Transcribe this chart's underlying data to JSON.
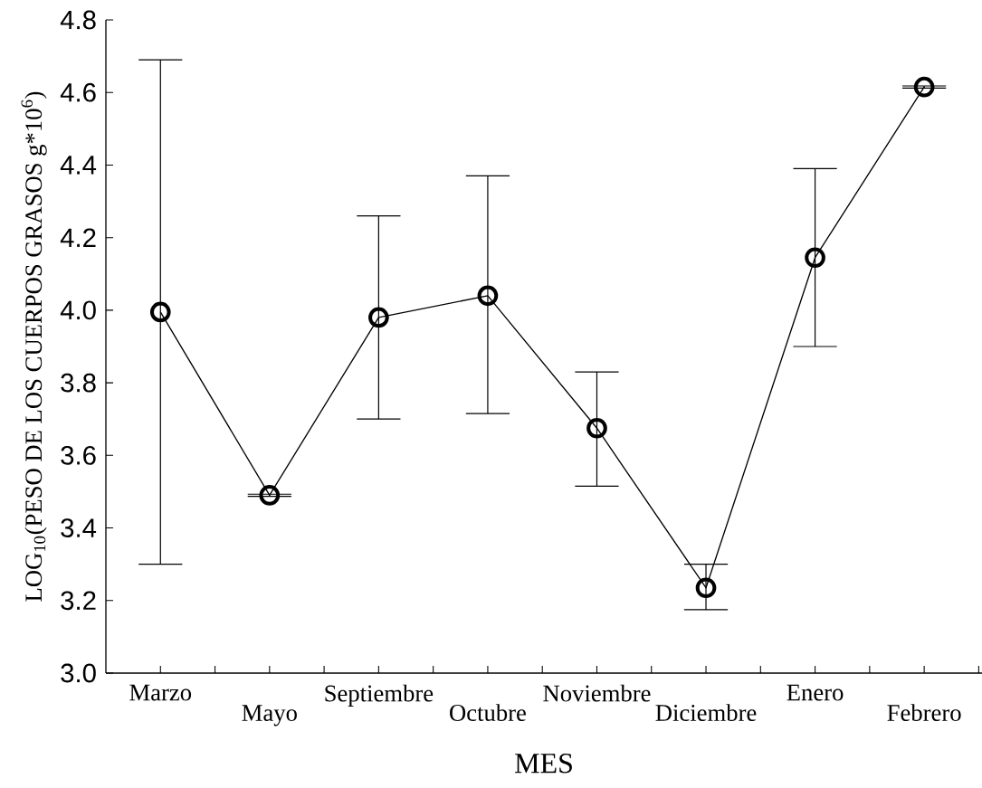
{
  "chart_data": {
    "type": "line",
    "xlabel": "MES",
    "ylabel": "LOG$_{10}$(PESO DE LOS CUERPOS GRASOS g*10$^{6}$)",
    "categories": [
      "Marzo",
      "Mayo",
      "Septiembre",
      "Octubre",
      "Noviembre",
      "Diciembre",
      "Enero",
      "Febrero"
    ],
    "values": [
      3.995,
      3.49,
      3.98,
      4.04,
      3.675,
      3.235,
      4.145,
      4.615
    ],
    "errors": [
      [
        3.3,
        4.69
      ],
      [
        3.487,
        3.493
      ],
      [
        3.7,
        4.26
      ],
      [
        3.715,
        4.37
      ],
      [
        3.515,
        3.83
      ],
      [
        3.175,
        3.3
      ],
      [
        3.9,
        4.39
      ],
      [
        4.612,
        4.618
      ]
    ],
    "color": "#000000",
    "marker": "circle",
    "line_style": "solid",
    "ylim": [
      3.0,
      4.8
    ],
    "yticks": [
      {
        "value": 3.0,
        "label": "3.0"
      },
      3.2,
      3.4,
      3.6,
      3.8,
      {
        "value": 4.0,
        "label": "4.0"
      },
      4.2,
      4.4,
      4.6,
      4.8
    ]
  }
}
